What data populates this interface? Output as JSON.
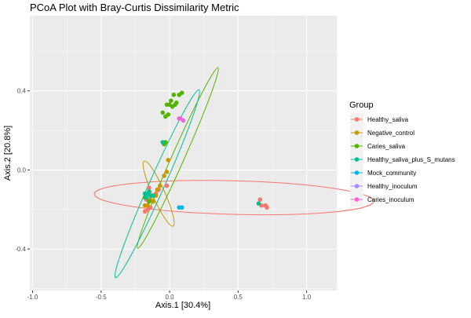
{
  "chart_data": {
    "type": "scatter",
    "title": "PCoA Plot with Bray-Curtis Dissimilarity Metric",
    "xlabel": "Axis.1   [30.4%]",
    "ylabel": "Axis.2   [20.8%]",
    "xlim": [
      -1.02,
      1.22
    ],
    "ylim": [
      -0.61,
      0.78
    ],
    "x_ticks": [
      -1.0,
      -0.5,
      0.0,
      0.5,
      1.0
    ],
    "x_tick_labels": [
      "-1.0",
      "-0.5",
      "0.0",
      "0.5",
      "1.0"
    ],
    "y_ticks": [
      -0.4,
      0.0,
      0.4
    ],
    "y_tick_labels": [
      "-0.4",
      "0.0",
      "0.4"
    ],
    "grid": true,
    "panel_background": "#EBEBEB",
    "legend": {
      "title": "Group",
      "position": "right"
    },
    "series": [
      {
        "name": "Healthy_saliva",
        "color": "#F8766D",
        "points": [
          [
            -0.18,
            -0.21
          ],
          [
            -0.16,
            -0.2
          ],
          [
            -0.14,
            -0.19
          ],
          [
            -0.15,
            -0.09
          ],
          [
            -0.12,
            -0.13
          ],
          [
            -0.17,
            -0.15
          ],
          [
            -0.1,
            -0.12
          ],
          [
            -0.08,
            -0.1
          ],
          [
            -0.02,
            -0.08
          ],
          [
            0.66,
            -0.15
          ],
          [
            0.67,
            -0.18
          ],
          [
            0.7,
            -0.18
          ],
          [
            0.71,
            -0.19
          ]
        ],
        "ellipse": {
          "cx": 0.47,
          "cy": -0.14,
          "rx": 1.02,
          "ry": 0.085,
          "angle_deg": 1.5
        }
      },
      {
        "name": "Negative_control",
        "color": "#C49A00",
        "points": [
          [
            -0.18,
            -0.18
          ],
          [
            -0.16,
            -0.18
          ],
          [
            -0.14,
            -0.15
          ],
          [
            -0.12,
            -0.16
          ],
          [
            -0.1,
            -0.13
          ],
          [
            -0.09,
            -0.1
          ],
          [
            -0.07,
            -0.08
          ],
          [
            -0.04,
            -0.03
          ],
          [
            -0.02,
            -0.01
          ],
          [
            -0.01,
            0.05
          ]
        ],
        "ellipse": {
          "cx": -0.08,
          "cy": -0.12,
          "rx": 0.045,
          "ry": 0.18,
          "angle_deg": -24
        }
      },
      {
        "name": "Caries_saliva",
        "color": "#53B400",
        "points": [
          [
            -0.05,
            0.29
          ],
          [
            -0.03,
            0.27
          ],
          [
            -0.02,
            0.33
          ],
          [
            -0.01,
            0.28
          ],
          [
            0.0,
            0.33
          ],
          [
            0.01,
            0.35
          ],
          [
            0.02,
            0.32
          ],
          [
            0.03,
            0.38
          ],
          [
            0.04,
            0.33
          ],
          [
            0.05,
            0.34
          ],
          [
            0.07,
            0.38
          ],
          [
            0.09,
            0.39
          ],
          [
            -0.04,
            0.13
          ],
          [
            -0.03,
            0.14
          ],
          [
            -0.18,
            -0.14
          ],
          [
            -0.15,
            -0.16
          ]
        ],
        "ellipse": {
          "cx": 0.06,
          "cy": 0.06,
          "rx": 0.045,
          "ry": 0.5,
          "angle_deg": 24
        }
      },
      {
        "name": "Healthy_saliva_plus_S_mutans",
        "color": "#00C094",
        "points": [
          [
            -0.18,
            -0.12
          ],
          [
            -0.17,
            -0.14
          ],
          [
            -0.15,
            -0.11
          ],
          [
            -0.14,
            -0.13
          ],
          [
            -0.16,
            -0.12
          ],
          [
            -0.12,
            -0.13
          ],
          [
            -0.05,
            0.14
          ],
          [
            0.65,
            -0.17
          ]
        ],
        "ellipse": {
          "cx": -0.09,
          "cy": -0.07,
          "rx": 0.055,
          "ry": 0.52,
          "angle_deg": 24
        }
      },
      {
        "name": "Mock_community",
        "color": "#00B6EB",
        "points": [
          [
            0.07,
            -0.19
          ],
          [
            0.09,
            -0.19
          ]
        ],
        "ellipse": null
      },
      {
        "name": "Healthy_inoculum",
        "color": "#A58AFF",
        "points": [
          [
            0.08,
            0.26
          ]
        ],
        "ellipse": null
      },
      {
        "name": "Caries_inoculum",
        "color": "#FB61D7",
        "points": [
          [
            0.07,
            0.26
          ],
          [
            0.1,
            0.25
          ]
        ],
        "ellipse": null
      }
    ]
  }
}
